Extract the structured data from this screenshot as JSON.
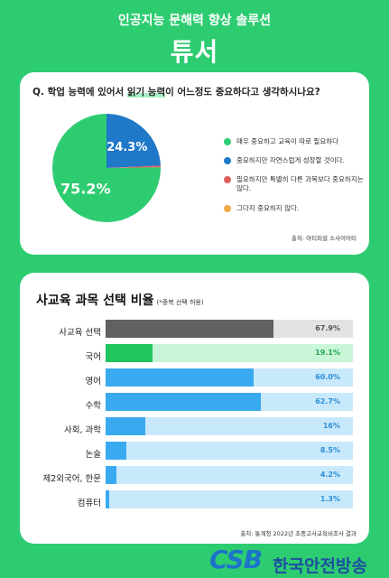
{
  "header": {
    "tagline": "인공지능 문해력 향상 솔루션",
    "brand": "튜서"
  },
  "survey": {
    "question_prefix": "Q. 학업 능력에 있어서 ",
    "question_highlight": "읽기 능력",
    "question_suffix": "이 어느정도 중요하다고 생각하시나요?",
    "source": "출처: 아티피셜 소사이어티"
  },
  "chart_data": [
    {
      "type": "pie",
      "slices": [
        {
          "label": "매우 중요하고 교육이 따로 필요하다",
          "value": 75.2,
          "value_label": "75.2%",
          "color": "#2ecc71"
        },
        {
          "label": "중요하지만 자연스럽게 성장할 것이다.",
          "value": 24.3,
          "value_label": "24.3%",
          "color": "#1f78c8"
        },
        {
          "label": "필요하지만 특별히 다른 과목보다 중요하지는 않다.",
          "value": 0.5,
          "value_label": "",
          "color": "#e05d5d"
        },
        {
          "label": "그다지 중요하지 않다.",
          "value": 0,
          "value_label": "",
          "color": "#f0a94a"
        }
      ]
    },
    {
      "type": "bar",
      "orientation": "horizontal",
      "title": "사교육 과목 선택 비율",
      "subtitle": "(*중복 선택 허용)",
      "xlim": [
        0,
        100
      ],
      "categories": [
        "사교육 선택",
        "국어",
        "영어",
        "수학",
        "사회, 과학",
        "논술",
        "제2외국어, 한문",
        "컴퓨터"
      ],
      "values": [
        67.9,
        19.1,
        60.0,
        62.7,
        16,
        8.5,
        4.2,
        1.3
      ],
      "value_labels": [
        "67.9%",
        "19.1%",
        "60.0%",
        "62.7%",
        "16%",
        "8.5%",
        "4.2%",
        "1.3%"
      ],
      "colors": {
        "highlight_fill": "#616161",
        "highlight_track": "#e3e3e3",
        "highlight_text": "#555555",
        "accent_fill": "#22c55e",
        "accent_track": "#c9f5d8",
        "accent_text": "#22a650",
        "fill": "#3aaaf0",
        "track": "#c8e9fb",
        "text": "#2b8fd6"
      },
      "source": "출처: 통계청 2022년 초중고사교육비조사 결과"
    }
  ],
  "footer": {
    "logo_text": "CSB",
    "broadcaster": "한국안전방송"
  }
}
